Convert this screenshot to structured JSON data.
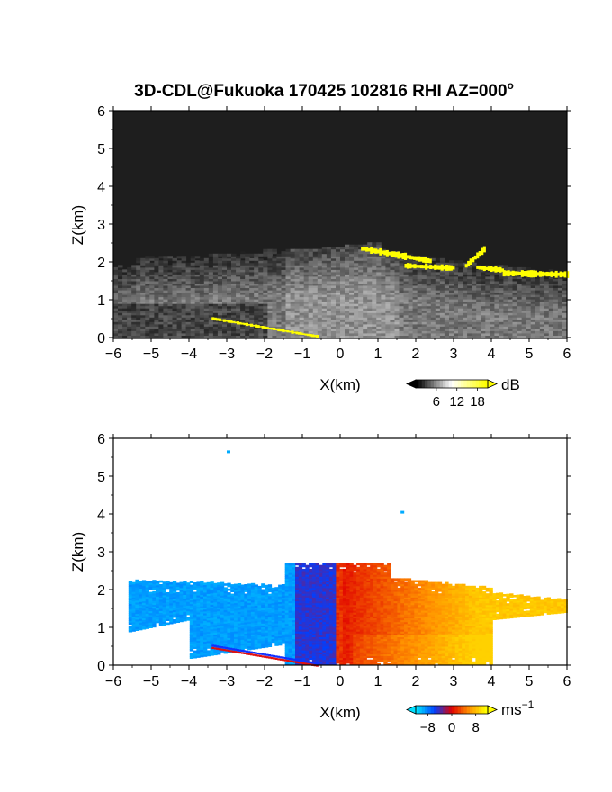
{
  "title": "3D-CDL@Fukuoka 170425 102816 RHI AZ=000",
  "title_degree": "o",
  "chart_data": [
    {
      "type": "heatmap",
      "panel": "top",
      "quantity_unit": "dB",
      "xlabel": "X(km)",
      "ylabel": "Z(km)",
      "xlim": [
        -6,
        6
      ],
      "ylim": [
        0,
        6
      ],
      "xticks": [
        -6,
        -5,
        -4,
        -3,
        -2,
        -1,
        0,
        1,
        2,
        3,
        4,
        5,
        6
      ],
      "yticks": [
        0,
        1,
        2,
        3,
        4,
        5,
        6
      ],
      "colorbar": {
        "unit": "dB",
        "ticks": [
          6,
          12,
          18
        ],
        "range": [
          0,
          21
        ],
        "extend": "both",
        "colors": [
          "#000000",
          "#ffffff",
          "#ffff00"
        ]
      },
      "background_noise_dB": 2,
      "features": [
        {
          "name": "main echo layer",
          "x_range": [
            -6,
            6
          ],
          "z_range": [
            0.3,
            2.6
          ],
          "value_dB": 10
        },
        {
          "name": "strong echo top",
          "x_range": [
            0.5,
            6
          ],
          "z_range": [
            1.5,
            2.4
          ],
          "value_dB": 20
        },
        {
          "name": "near-ground strong echo",
          "x_range": [
            -3.4,
            -0.5
          ],
          "z_range": [
            0,
            0.55
          ],
          "value_dB": 20
        }
      ]
    },
    {
      "type": "heatmap",
      "panel": "bottom",
      "quantity_unit": "ms-1",
      "xlabel": "X(km)",
      "ylabel": "Z(km)",
      "xlim": [
        -6,
        6
      ],
      "ylim": [
        0,
        6
      ],
      "xticks": [
        -6,
        -5,
        -4,
        -3,
        -2,
        -1,
        0,
        1,
        2,
        3,
        4,
        5,
        6
      ],
      "yticks": [
        0,
        1,
        2,
        3,
        4,
        5,
        6
      ],
      "colorbar": {
        "unit": "ms",
        "unit_exponent": "−1",
        "ticks": [
          -8,
          0,
          8
        ],
        "range": [
          -12,
          12
        ],
        "extend": "both",
        "colors": [
          "#00e0ff",
          "#0040ff",
          "#e00000",
          "#ff9000",
          "#ffff00"
        ]
      },
      "features": [
        {
          "name": "approaching flow",
          "x_range": [
            -5.6,
            0
          ],
          "z_range": [
            0.5,
            2.6
          ],
          "velocity": -8
        },
        {
          "name": "receding flow",
          "x_range": [
            0,
            6
          ],
          "z_range": [
            0,
            2.7
          ],
          "velocity": 8
        },
        {
          "name": "isolated echo",
          "x": -3,
          "z": 5.65,
          "velocity": -10
        },
        {
          "name": "isolated echo",
          "x": 1.6,
          "z": 4.05,
          "velocity": -10
        }
      ]
    }
  ]
}
